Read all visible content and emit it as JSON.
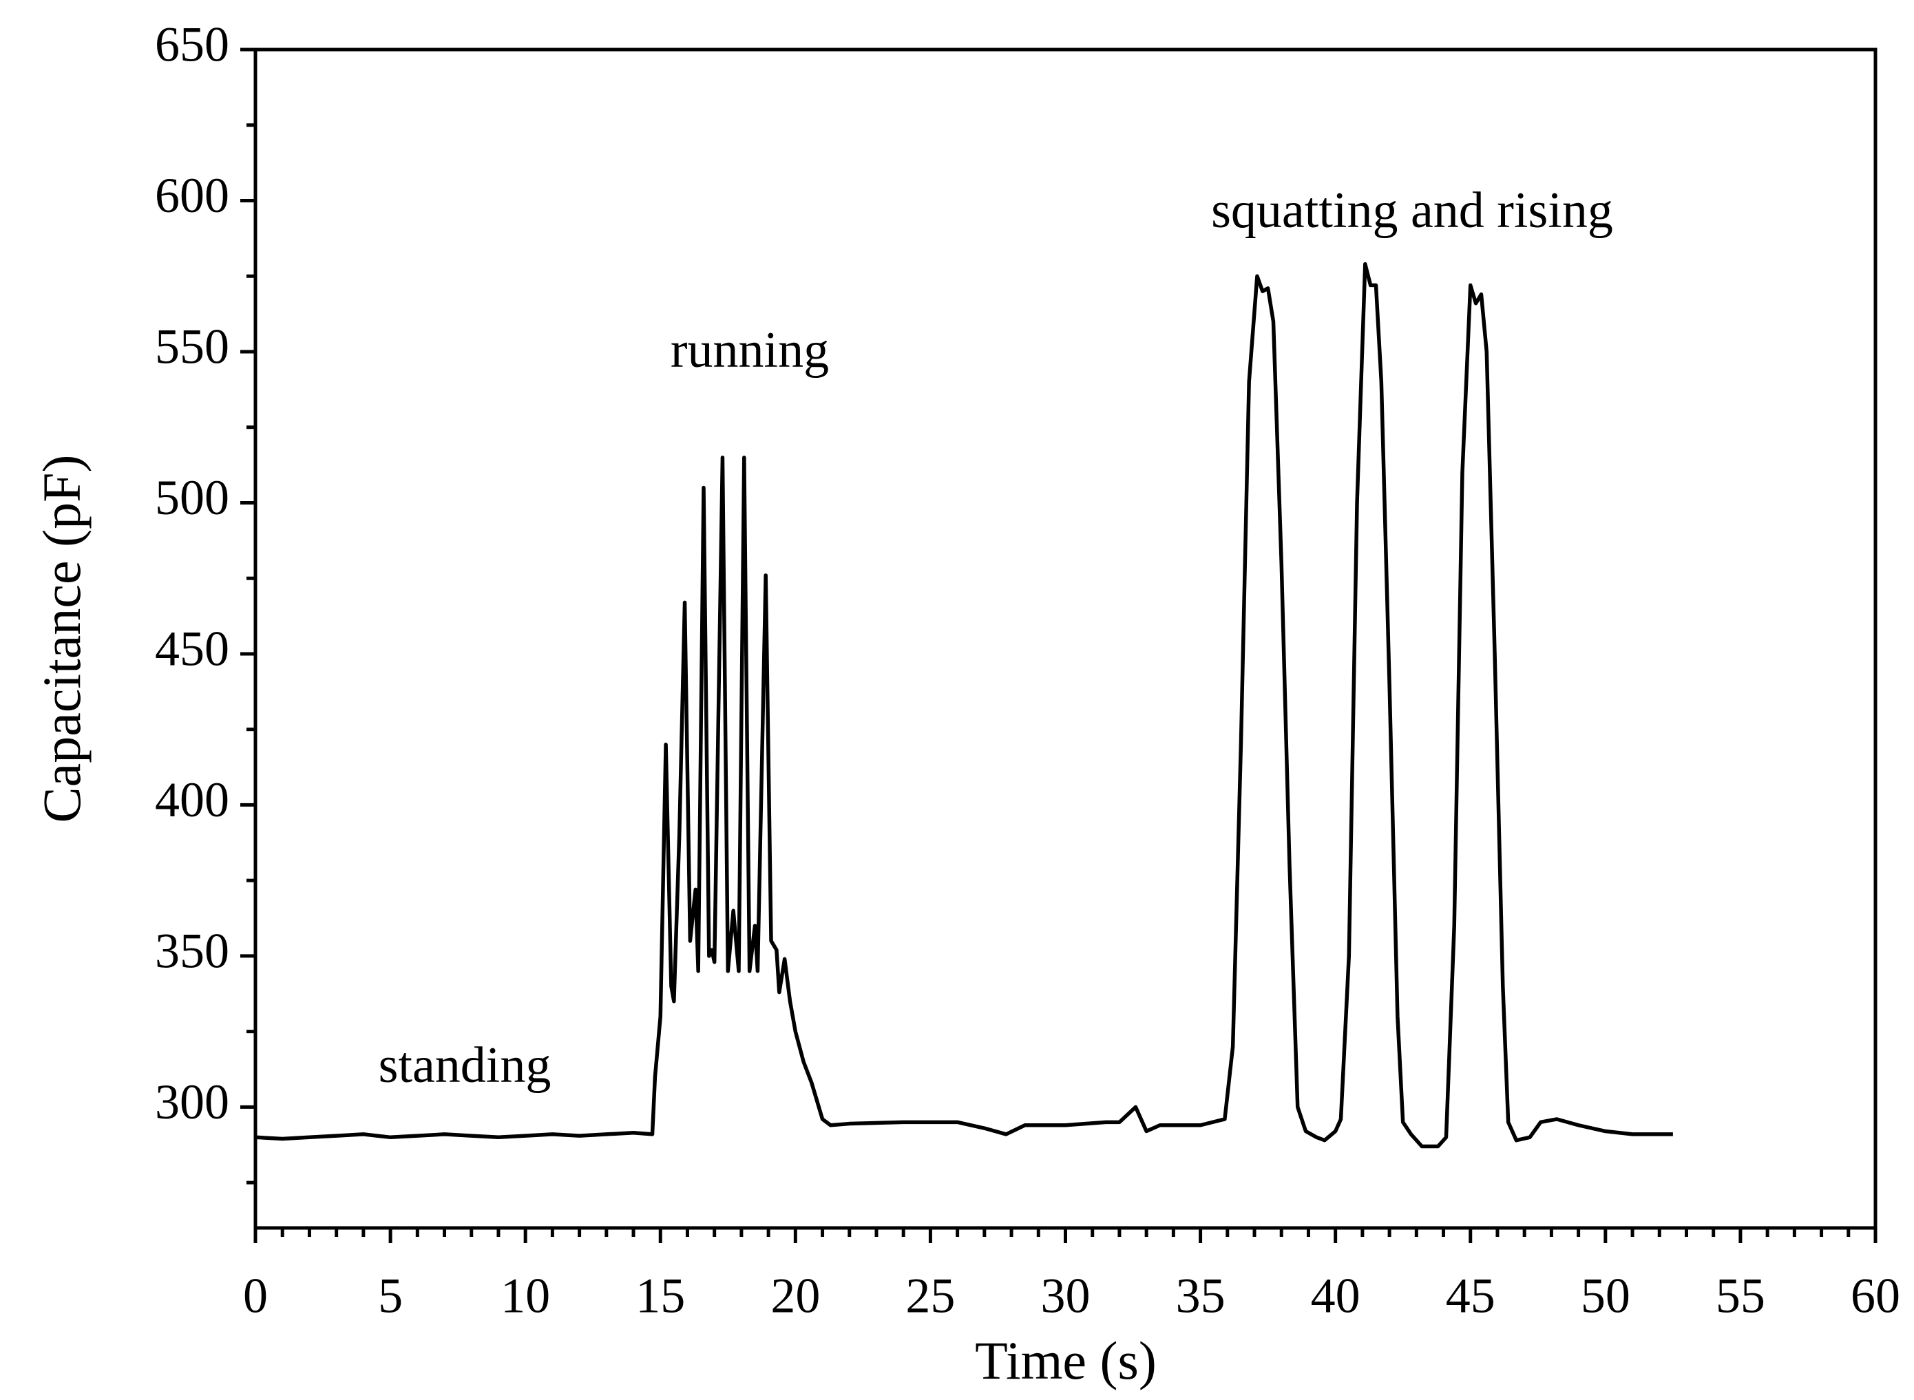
{
  "chart_data": {
    "type": "line",
    "x_label": "Time (s)",
    "y_label": "Capacitance (pF)",
    "annotations": [
      "standing",
      "running",
      "squatting and rising"
    ],
    "xlim": [
      0,
      60
    ],
    "ylim": [
      260,
      650
    ],
    "xticks": [
      0,
      5,
      10,
      15,
      20,
      25,
      30,
      35,
      40,
      45,
      50,
      55,
      60
    ],
    "yticks": [
      300,
      350,
      400,
      450,
      500,
      550,
      600,
      650
    ],
    "x_minor_per_interval": 4,
    "y_minor_per_interval": 1,
    "grid": false,
    "series": [
      {
        "color": "#000000",
        "x": [
          0,
          1,
          2,
          3,
          4,
          5,
          6,
          7,
          8,
          9,
          10,
          11,
          12,
          13,
          14,
          14.7,
          14.8,
          15.0,
          15.2,
          15.4,
          15.5,
          15.7,
          15.9,
          16.1,
          16.3,
          16.4,
          16.6,
          16.8,
          16.9,
          17.0,
          17.3,
          17.5,
          17.7,
          17.9,
          18.1,
          18.3,
          18.5,
          18.6,
          18.9,
          19.1,
          19.3,
          19.4,
          19.6,
          19.8,
          20.0,
          20.3,
          20.6,
          21.0,
          21.3,
          22,
          24,
          26,
          27,
          27.8,
          28.5,
          30,
          31.5,
          32,
          32.6,
          33.0,
          33.5,
          35,
          35.9,
          36.2,
          36.5,
          36.8,
          37.1,
          37.3,
          37.5,
          37.7,
          38.0,
          38.3,
          38.6,
          38.9,
          39.3,
          39.6,
          40.0,
          40.2,
          40.5,
          40.8,
          41.1,
          41.3,
          41.5,
          41.7,
          42.0,
          42.3,
          42.5,
          42.8,
          43.2,
          43.8,
          44.1,
          44.4,
          44.7,
          45.0,
          45.2,
          45.4,
          45.6,
          45.9,
          46.2,
          46.4,
          46.7,
          47.2,
          47.6,
          48.2,
          49,
          50,
          51,
          52,
          52.5
        ],
        "values": [
          290,
          289.5,
          290,
          290.5,
          291,
          290,
          290.5,
          291,
          290.5,
          290,
          290.5,
          291,
          290.5,
          291,
          291.5,
          291,
          310,
          330,
          420,
          340,
          335,
          390,
          467,
          355,
          372,
          345,
          505,
          350,
          352,
          348,
          515,
          345,
          365,
          345,
          515,
          345,
          360,
          345,
          476,
          355,
          352,
          338,
          349,
          335,
          325,
          315,
          308,
          296,
          294,
          294.5,
          295,
          295,
          293,
          291,
          294,
          294,
          295,
          295,
          300,
          292,
          294,
          294,
          296,
          320,
          420,
          540,
          575,
          570,
          571,
          560,
          480,
          380,
          300,
          292,
          290,
          289,
          292,
          296,
          350,
          500,
          579,
          572,
          572,
          540,
          440,
          330,
          295,
          291,
          287,
          287,
          290,
          360,
          510,
          572,
          566,
          569,
          550,
          450,
          340,
          295,
          289,
          290,
          295,
          296,
          294,
          292,
          291,
          291,
          291
        ]
      }
    ]
  }
}
